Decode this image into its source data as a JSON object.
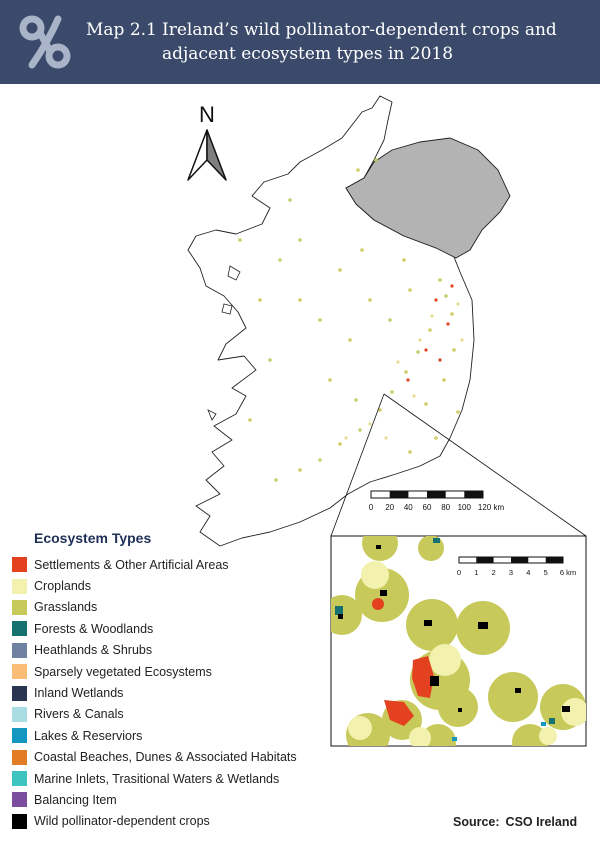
{
  "header": {
    "map_number": "Map 2.1",
    "title_line1": "Ireland’s wild pollinator-dependent crops and",
    "title_line2": "adjacent ecosystem types in 2018",
    "background_color": "#3b4a6b",
    "logo_icon": "cso-knot-logo-icon"
  },
  "north_arrow": {
    "label": "N"
  },
  "scale_main": {
    "labels": [
      "0",
      "20",
      "40",
      "60",
      "80",
      "100",
      "120 km"
    ]
  },
  "scale_inset": {
    "labels": [
      "0",
      "1",
      "2",
      "3",
      "4",
      "5",
      "6 km"
    ]
  },
  "legend": {
    "title": "Ecosystem Types",
    "items": [
      {
        "label": "Settlements & Other Artificial Areas",
        "color": "#e3411f"
      },
      {
        "label": "Croplands",
        "color": "#f3f1ae"
      },
      {
        "label": "Grasslands",
        "color": "#c7c95a"
      },
      {
        "label": "Forests & Woodlands",
        "color": "#17716f"
      },
      {
        "label": "Heathlands & Shrubs",
        "color": "#7082a1"
      },
      {
        "label": "Sparsely vegetated Ecosystems",
        "color": "#fbbd76"
      },
      {
        "label": "Inland Wetlands",
        "color": "#2a3551"
      },
      {
        "label": "Rivers & Canals",
        "color": "#a9dde3"
      },
      {
        "label": "Lakes & Reserviors",
        "color": "#1497c1"
      },
      {
        "label": "Coastal Beaches, Dunes & Associated Habitats",
        "color": "#e27c25"
      },
      {
        "label": "Marine Inlets, Trasitional Waters & Wetlands",
        "color": "#3ec4c0"
      },
      {
        "label": "Balancing Item",
        "color": "#7a4d9e"
      },
      {
        "label": "Wild pollinator-dependent crops",
        "color": "#000000"
      }
    ]
  },
  "northern_ireland_color": "#b3b3b3",
  "source": {
    "label": "Source:",
    "value": "CSO Ireland"
  }
}
